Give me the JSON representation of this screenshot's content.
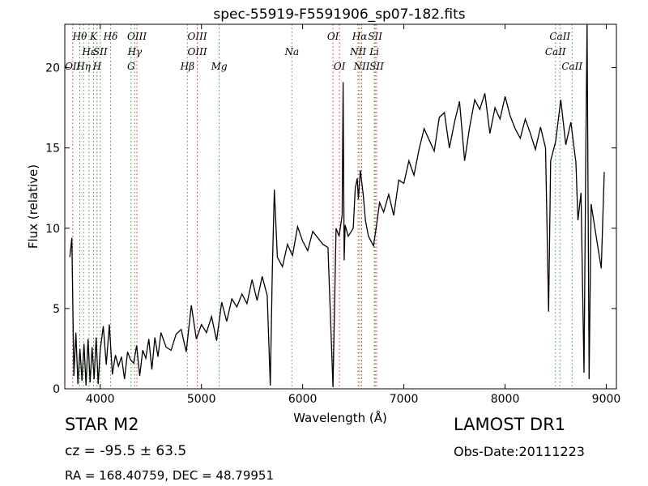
{
  "chart_data": {
    "type": "line",
    "title": "spec-55919-F5591906_sp07-182.fits",
    "xlabel": "Wavelength (Å)",
    "ylabel": "Flux (relative)",
    "xlim": [
      3650,
      9100
    ],
    "ylim": [
      0,
      22.7
    ],
    "xticks": [
      4000,
      5000,
      6000,
      7000,
      8000,
      9000
    ],
    "yticks": [
      0,
      5,
      10,
      15,
      20
    ],
    "grid": false,
    "line_color": "#000000",
    "marker_color": "#2ca02c",
    "series": [
      {
        "x": [
          3700,
          3720,
          3740,
          3760,
          3780,
          3800,
          3820,
          3840,
          3860,
          3880,
          3900,
          3920,
          3940,
          3960,
          3980,
          4000,
          4030,
          4060,
          4090,
          4120,
          4150,
          4180,
          4210,
          4240,
          4270,
          4300,
          4330,
          4360,
          4390,
          4420,
          4450,
          4480,
          4510,
          4540,
          4570,
          4600,
          4650,
          4700,
          4750,
          4800,
          4850,
          4900,
          4950,
          5000,
          5050,
          5100,
          5150,
          5200,
          5250,
          5300,
          5350,
          5400,
          5450,
          5500,
          5550,
          5600,
          5650,
          5680,
          5700,
          5720,
          5750,
          5800,
          5850,
          5900,
          5950,
          6000,
          6050,
          6100,
          6150,
          6200,
          6250,
          6300,
          6330,
          6360,
          6390,
          6400,
          6410,
          6420,
          6450,
          6500,
          6520,
          6540,
          6550,
          6570,
          6600,
          6620,
          6650,
          6700,
          6730,
          6760,
          6800,
          6850,
          6900,
          6950,
          7000,
          7050,
          7100,
          7150,
          7200,
          7250,
          7300,
          7350,
          7400,
          7450,
          7500,
          7550,
          7600,
          7650,
          7700,
          7750,
          7800,
          7850,
          7900,
          7950,
          8000,
          8050,
          8100,
          8150,
          8200,
          8250,
          8300,
          8350,
          8400,
          8430,
          8450,
          8500,
          8550,
          8600,
          8650,
          8700,
          8720,
          8750,
          8780,
          8800,
          8810,
          8830,
          8850,
          8900,
          8950,
          8980
        ],
        "y": [
          8.2,
          9.4,
          0.8,
          3.5,
          0.3,
          2.5,
          0.5,
          2.8,
          0.2,
          3.1,
          0.4,
          2.6,
          0.6,
          3.2,
          0.3,
          2.4,
          3.9,
          1.5,
          4.0,
          0.9,
          2.1,
          1.4,
          2.0,
          0.6,
          2.3,
          1.8,
          1.6,
          2.7,
          0.8,
          2.4,
          1.9,
          3.1,
          1.2,
          3.2,
          2.0,
          3.5,
          2.6,
          2.4,
          3.4,
          3.7,
          2.3,
          5.2,
          3.1,
          4.0,
          3.5,
          4.5,
          3.0,
          5.4,
          4.2,
          5.6,
          5.1,
          5.9,
          5.3,
          6.8,
          5.5,
          7.0,
          5.8,
          0.2,
          7.4,
          12.4,
          8.2,
          7.6,
          9.0,
          8.3,
          10.1,
          9.2,
          8.6,
          9.8,
          9.4,
          9.0,
          8.8,
          0.1,
          10.0,
          9.5,
          10.8,
          19.1,
          8.0,
          10.2,
          9.5,
          10.0,
          12.5,
          13.1,
          11.8,
          13.6,
          12.0,
          10.5,
          9.5,
          8.9,
          10.2,
          11.6,
          11.0,
          12.1,
          10.8,
          13.0,
          12.8,
          14.2,
          13.3,
          14.9,
          16.2,
          15.5,
          14.8,
          16.9,
          17.2,
          15.0,
          16.6,
          17.9,
          14.2,
          16.3,
          18.0,
          17.4,
          18.4,
          15.9,
          17.5,
          16.8,
          18.2,
          17.0,
          16.2,
          15.6,
          16.8,
          15.9,
          14.9,
          16.3,
          15.0,
          4.8,
          14.2,
          15.4,
          18.0,
          15.2,
          16.6,
          14.1,
          10.5,
          12.2,
          1.0,
          16.2,
          22.7,
          0.6,
          11.5,
          9.5,
          7.5,
          13.5
        ]
      }
    ],
    "line_annotations": [
      {
        "label": "OII",
        "x": 3728,
        "row": 3,
        "color": "#d62728"
      },
      {
        "label": "Hθ",
        "x": 3798,
        "row": 1,
        "color": "#2ca02c"
      },
      {
        "label": "Hη",
        "x": 3835,
        "row": 3,
        "color": "#2ca02c"
      },
      {
        "label": "Hε",
        "x": 3889,
        "row": 2,
        "color": "#2ca02c"
      },
      {
        "label": "K",
        "x": 3934,
        "row": 1,
        "color": "#2ca02c"
      },
      {
        "label": "SII",
        "x": 4000,
        "row": 2,
        "color": "#2ca02c"
      },
      {
        "label": "H",
        "x": 3969,
        "row": 3,
        "color": "#2ca02c"
      },
      {
        "label": "Hδ",
        "x": 4102,
        "row": 1,
        "color": "#2ca02c"
      },
      {
        "label": "OIII",
        "x": 4363,
        "row": 1,
        "color": "#d62728"
      },
      {
        "label": "Hγ",
        "x": 4341,
        "row": 2,
        "color": "#2ca02c"
      },
      {
        "label": "G",
        "x": 4305,
        "row": 3,
        "color": "#2ca02c"
      },
      {
        "label": "OIII",
        "x": 4959,
        "row": 1,
        "color": "#d62728"
      },
      {
        "label": "OIII",
        "x": 4959,
        "row": 2,
        "color": "#d62728"
      },
      {
        "label": "Hβ",
        "x": 4861,
        "row": 3,
        "color": "#2ca02c"
      },
      {
        "label": "Mg",
        "x": 5175,
        "row": 3,
        "color": "#2ca02c"
      },
      {
        "label": "Na",
        "x": 5893,
        "row": 2,
        "color": "#2ca02c"
      },
      {
        "label": "OI",
        "x": 6300,
        "row": 1,
        "color": "#d62728"
      },
      {
        "label": "OI",
        "x": 6364,
        "row": 3,
        "color": "#d62728"
      },
      {
        "label": "Hα",
        "x": 6563,
        "row": 1,
        "color": "#2ca02c"
      },
      {
        "label": "SII",
        "x": 6716,
        "row": 1,
        "color": "#d62728"
      },
      {
        "label": "NII",
        "x": 6548,
        "row": 2,
        "color": "#d62728"
      },
      {
        "label": "Li",
        "x": 6708,
        "row": 2,
        "color": "#2ca02c"
      },
      {
        "label": "NII",
        "x": 6583,
        "row": 3,
        "color": "#d62728"
      },
      {
        "label": "SII",
        "x": 6731,
        "row": 3,
        "color": "#d62728"
      },
      {
        "label": "CaII",
        "x": 8542,
        "row": 1,
        "color": "#2ca02c"
      },
      {
        "label": "CaII",
        "x": 8498,
        "row": 2,
        "color": "#2ca02c"
      },
      {
        "label": "CaII",
        "x": 8662,
        "row": 3,
        "color": "#2ca02c"
      }
    ]
  },
  "info": {
    "object_type": "STAR   M2",
    "survey": "LAMOST DR1",
    "cz": "cz = -95.5 ± 63.5",
    "obs_date": "Obs-Date:20111223",
    "radec": "RA = 168.40759, DEC = 48.79951"
  }
}
